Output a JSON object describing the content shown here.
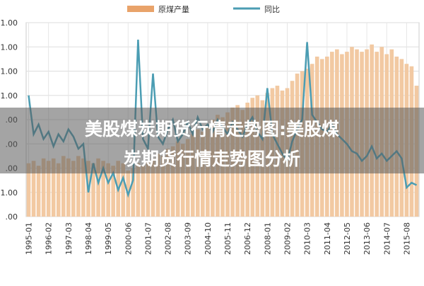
{
  "chart_data": {
    "type": "bar-line",
    "overlay_title": [
      "美股煤炭期货行情走势图:美股煤",
      "炭期货行情走势图分析"
    ],
    "categories": [
      "1995-01",
      null,
      null,
      null,
      "1996-02",
      null,
      null,
      null,
      "1997-03",
      null,
      null,
      null,
      "1998-04",
      null,
      null,
      null,
      "1999-05",
      null,
      null,
      null,
      "2000-06",
      null,
      null,
      null,
      "2001-07",
      null,
      null,
      null,
      "2002-08",
      null,
      null,
      null,
      "2003-09",
      null,
      null,
      null,
      "2004-10",
      null,
      null,
      null,
      "2005-11",
      null,
      null,
      null,
      "2006-12",
      null,
      null,
      null,
      "2008-01",
      null,
      null,
      null,
      "2009-02",
      null,
      null,
      null,
      "2010-03",
      null,
      null,
      null,
      "2011-04",
      null,
      null,
      null,
      "2012-05",
      null,
      null,
      null,
      "2013-06",
      null,
      null,
      null,
      "2014-07",
      null,
      null,
      null,
      "2015-08",
      null,
      null
    ],
    "series": [
      {
        "name": "原煤产量",
        "kind": "bar",
        "color": "#f2c9a2",
        "legend_color": "#e9a36a",
        "values": [
          2.2,
          2.3,
          2.1,
          2.4,
          2.3,
          2.4,
          2.2,
          2.5,
          2.4,
          2.3,
          2.5,
          2.4,
          2.3,
          2.2,
          2.4,
          2.3,
          2.2,
          2.1,
          2.3,
          2.2,
          1.9,
          2.0,
          2.2,
          2.1,
          2.3,
          2.4,
          2.6,
          2.5,
          2.8,
          2.9,
          3.1,
          3.0,
          3.2,
          3.4,
          3.6,
          3.5,
          3.8,
          4.0,
          4.2,
          4.1,
          4.3,
          4.5,
          4.6,
          4.4,
          4.7,
          4.9,
          5.0,
          4.8,
          5.1,
          5.3,
          5.4,
          5.2,
          5.3,
          5.6,
          5.9,
          6.0,
          6.1,
          6.3,
          6.6,
          6.5,
          6.6,
          6.8,
          6.9,
          6.7,
          6.8,
          7.0,
          6.9,
          6.8,
          6.9,
          7.1,
          6.8,
          7.0,
          6.7,
          6.9,
          6.6,
          6.5,
          6.3,
          6.2,
          5.4
        ]
      },
      {
        "name": "同比",
        "kind": "line",
        "color": "#4b9db3",
        "values": [
          5.0,
          3.4,
          3.8,
          3.2,
          3.5,
          2.9,
          3.4,
          3.1,
          3.6,
          3.3,
          2.8,
          3.0,
          1.0,
          2.2,
          1.4,
          2.0,
          1.4,
          1.8,
          1.1,
          1.6,
          0.9,
          1.5,
          7.3,
          3.2,
          2.8,
          5.9,
          3.3,
          3.0,
          3.6,
          4.0,
          3.1,
          3.4,
          3.9,
          3.4,
          4.1,
          3.6,
          3.8,
          3.5,
          4.0,
          3.7,
          3.4,
          3.9,
          3.6,
          3.3,
          3.8,
          4.1,
          3.5,
          3.2,
          5.3,
          3.4,
          3.0,
          2.6,
          2.3,
          3.1,
          3.6,
          4.0,
          7.2,
          4.2,
          3.9,
          3.6,
          3.5,
          3.8,
          3.4,
          3.2,
          3.0,
          2.7,
          2.6,
          2.3,
          2.5,
          2.9,
          2.4,
          2.6,
          2.3,
          2.5,
          2.7,
          2.4,
          1.2,
          1.4,
          1.3
        ]
      }
    ],
    "ylim": [
      0,
      8
    ],
    "yticks": [
      {
        "value": 0,
        "label": ".00"
      },
      {
        "value": 1,
        "label": "1.00"
      },
      {
        "value": 2,
        "label": ".00"
      },
      {
        "value": 3,
        "label": ".00"
      },
      {
        "value": 4,
        "label": ".00"
      },
      {
        "value": 5,
        "label": "1.00"
      },
      {
        "value": 6,
        "label": "1.00"
      },
      {
        "value": 7,
        "label": "1.00"
      },
      {
        "value": 8,
        "label": "1.00"
      }
    ],
    "grid": true
  }
}
